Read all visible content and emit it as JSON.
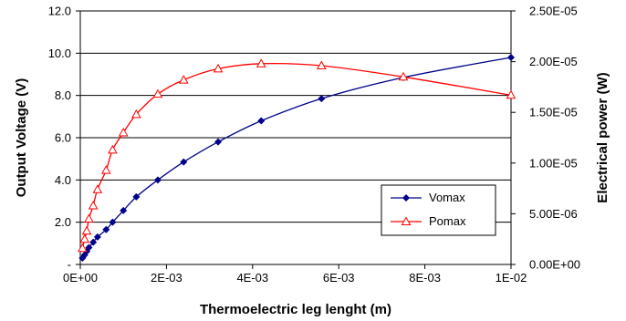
{
  "chart_data": {
    "type": "line",
    "xlabel": "Thermoelectric leg lenght (m)",
    "ylabel_left": "Output Voltage (V)",
    "ylabel_right": "Electrical power (W)",
    "xlim": [
      0,
      0.01
    ],
    "ylim_left": [
      0,
      12
    ],
    "ylim_right": [
      0,
      2.5e-05
    ],
    "x_ticks": [
      "0E+00",
      "2E-03",
      "4E-03",
      "6E-03",
      "8E-03",
      "1E-02"
    ],
    "y_left_ticks": [
      "-",
      "2.0",
      "4.0",
      "6.0",
      "8.0",
      "10.0",
      "12.0"
    ],
    "y_right_ticks": [
      "0.00E+00",
      "5.00E-06",
      "1.00E-05",
      "1.50E-05",
      "2.00E-05",
      "2.50E-05"
    ],
    "grid": "horizontal",
    "legend_position": "bottom-right",
    "series": [
      {
        "name": "Vomax",
        "axis": "left",
        "color": "#00008B",
        "marker": "diamond",
        "x": [
          5e-05,
          0.0001,
          0.00015,
          0.0002,
          0.0003,
          0.0004,
          0.0006,
          0.00075,
          0.001,
          0.0013,
          0.0018,
          0.0024,
          0.0032,
          0.0042,
          0.0056,
          0.0075,
          0.01
        ],
        "y": [
          0.3,
          0.45,
          0.62,
          0.8,
          1.05,
          1.3,
          1.65,
          2.0,
          2.55,
          3.2,
          4.0,
          4.85,
          5.8,
          6.8,
          7.85,
          8.85,
          9.8
        ]
      },
      {
        "name": "Pomax",
        "axis": "right",
        "color": "#FF0000",
        "marker": "triangle",
        "x": [
          5e-05,
          0.0001,
          0.00015,
          0.0002,
          0.0003,
          0.0004,
          0.0006,
          0.00075,
          0.001,
          0.0013,
          0.0018,
          0.0024,
          0.0032,
          0.0042,
          0.0056,
          0.0075,
          0.01
        ],
        "y": [
          1.6e-06,
          2.5e-06,
          3.3e-06,
          4.5e-06,
          5.8e-06,
          7.4e-06,
          9.3e-06,
          1.13e-05,
          1.3e-05,
          1.48e-05,
          1.68e-05,
          1.82e-05,
          1.93e-05,
          1.98e-05,
          1.96e-05,
          1.85e-05,
          1.67e-05
        ]
      }
    ]
  }
}
